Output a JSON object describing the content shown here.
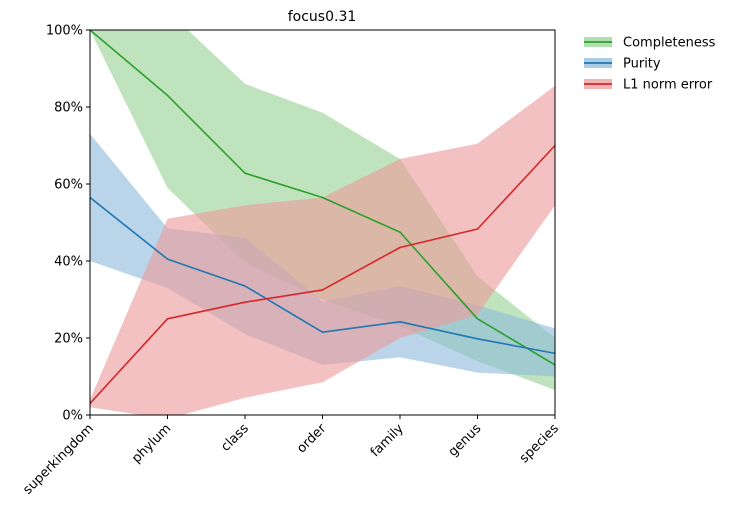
{
  "chart_data": {
    "type": "line",
    "title": "focus0.31",
    "xlabel": "",
    "ylabel": "",
    "categories": [
      "superkingdom",
      "phylum",
      "class",
      "order",
      "family",
      "genus",
      "species"
    ],
    "ylim": [
      0,
      100
    ],
    "yticks": [
      "0%",
      "20%",
      "40%",
      "60%",
      "80%",
      "100%"
    ],
    "grid": false,
    "legend_position": "outside-top-right",
    "series": [
      {
        "name": "Completeness",
        "color": "#2ca02c",
        "band_color": "#98d494",
        "values": [
          100,
          83,
          62.8,
          56.5,
          47.5,
          25,
          13
        ],
        "lower": [
          100,
          59,
          39.5,
          30,
          23,
          14,
          6.5
        ],
        "upper": [
          105,
          105,
          86,
          78.5,
          66.5,
          36,
          20
        ]
      },
      {
        "name": "Purity",
        "color": "#1f77b4",
        "band_color": "#8fbbdb",
        "values": [
          56.5,
          40.5,
          33.5,
          21.5,
          24.2,
          19.8,
          16
        ],
        "lower": [
          40,
          33,
          21,
          13,
          15,
          11,
          10
        ],
        "upper": [
          73,
          48.5,
          46,
          29.5,
          33.5,
          28.5,
          22.5
        ]
      },
      {
        "name": "L1 norm error",
        "color": "#d62728",
        "band_color": "#ec9b9b",
        "values": [
          3,
          25,
          29.3,
          32.5,
          43.5,
          48.3,
          70
        ],
        "lower": [
          2,
          -1,
          4.5,
          8.5,
          20,
          26,
          54.5
        ],
        "upper": [
          4,
          51,
          54.5,
          56.5,
          66.5,
          70.5,
          85.5
        ]
      }
    ]
  }
}
